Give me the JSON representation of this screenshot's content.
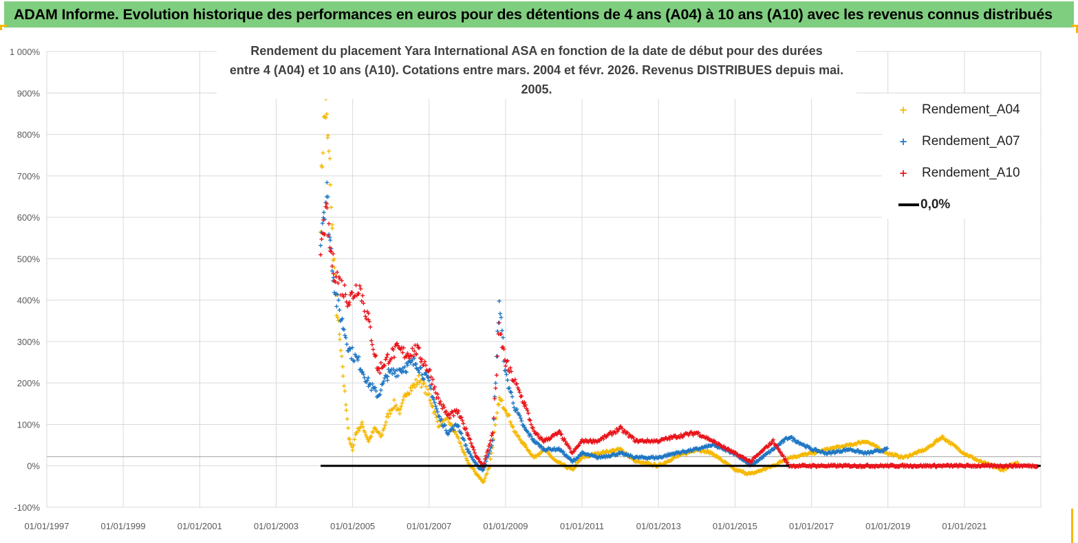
{
  "banner": {
    "title": "ADAM Informe. Evolution historique des performances en euros pour des détentions de 4 ans (A04) à 10 ans (A10) avec les revenus connus distribués"
  },
  "colors": {
    "banner_bg": "#7fcd7f",
    "A04": "#f5b800",
    "A07": "#1f77c4",
    "A10": "#e8141a",
    "zero_line": "#000000",
    "grid": "#d9d9d9"
  },
  "chart_data": {
    "type": "scatter",
    "title_line1": "Rendement du placement Yara International ASA en fonction de la date de début pour des durées",
    "title_line2": "entre 4 (A04) et 10 ans (A10).  Cotations entre mars. 2004 et févr. 2026. Revenus DISTRIBUES depuis mai. 2005.",
    "y_tick_labels": [
      "1 000%",
      "900%",
      "800%",
      "700%",
      "600%",
      "500%",
      "400%",
      "300%",
      "200%",
      "100%",
      "0%",
      "-100%"
    ],
    "y_ticks": [
      1000,
      900,
      800,
      700,
      600,
      500,
      400,
      300,
      200,
      100,
      0,
      -100
    ],
    "ylim": [
      -100,
      1000
    ],
    "x_tick_labels": [
      "01/01/1997",
      "01/01/1999",
      "01/01/2001",
      "01/01/2003",
      "01/01/2005",
      "01/01/2007",
      "01/01/2009",
      "01/01/2011",
      "01/01/2013",
      "01/01/2015",
      "01/01/2017",
      "01/01/2019",
      "01/01/2021"
    ],
    "x_ticks": [
      "1997-01-01",
      "1999-01-01",
      "2001-01-01",
      "2003-01-01",
      "2005-01-01",
      "2007-01-01",
      "2009-01-01",
      "2011-01-01",
      "2013-01-01",
      "2015-01-01",
      "2017-01-01",
      "2019-01-01",
      "2021-01-01"
    ],
    "xlim": [
      "1997-01-01",
      "2023-01-01"
    ],
    "grid": true,
    "legend_position": "top-right",
    "series": [
      {
        "name": "Rendement_A04",
        "marker": "+",
        "points": [
          [
            "2004-03-01",
            600
          ],
          [
            "2004-03-15",
            740
          ],
          [
            "2004-04-01",
            820
          ],
          [
            "2004-04-20",
            860
          ],
          [
            "2004-05-10",
            780
          ],
          [
            "2004-06-01",
            700
          ],
          [
            "2004-06-20",
            560
          ],
          [
            "2004-07-10",
            480
          ],
          [
            "2004-08-01",
            380
          ],
          [
            "2004-09-01",
            300
          ],
          [
            "2004-10-01",
            220
          ],
          [
            "2004-11-01",
            140
          ],
          [
            "2004-12-01",
            60
          ],
          [
            "2005-01-01",
            40
          ],
          [
            "2005-02-01",
            80
          ],
          [
            "2005-04-01",
            100
          ],
          [
            "2005-06-01",
            60
          ],
          [
            "2005-08-01",
            90
          ],
          [
            "2005-10-01",
            70
          ],
          [
            "2005-12-01",
            120
          ],
          [
            "2006-02-01",
            150
          ],
          [
            "2006-04-01",
            130
          ],
          [
            "2006-06-01",
            180
          ],
          [
            "2006-08-01",
            190
          ],
          [
            "2006-10-01",
            210
          ],
          [
            "2007-01-01",
            170
          ],
          [
            "2007-04-01",
            100
          ],
          [
            "2007-07-01",
            110
          ],
          [
            "2007-10-01",
            70
          ],
          [
            "2008-01-01",
            10
          ],
          [
            "2008-04-01",
            -20
          ],
          [
            "2008-06-01",
            -40
          ],
          [
            "2008-08-01",
            0
          ],
          [
            "2008-11-01",
            160
          ],
          [
            "2009-01-01",
            140
          ],
          [
            "2009-04-01",
            80
          ],
          [
            "2009-07-01",
            50
          ],
          [
            "2009-10-01",
            20
          ],
          [
            "2010-01-01",
            40
          ],
          [
            "2010-05-01",
            10
          ],
          [
            "2010-10-01",
            -10
          ],
          [
            "2011-01-01",
            20
          ],
          [
            "2011-06-01",
            30
          ],
          [
            "2012-01-01",
            40
          ],
          [
            "2012-06-01",
            10
          ],
          [
            "2013-01-01",
            0
          ],
          [
            "2013-06-01",
            20
          ],
          [
            "2014-01-01",
            40
          ],
          [
            "2014-06-01",
            30
          ],
          [
            "2015-01-01",
            -10
          ],
          [
            "2015-06-01",
            -20
          ],
          [
            "2016-01-01",
            0
          ],
          [
            "2016-06-01",
            20
          ],
          [
            "2017-01-01",
            30
          ],
          [
            "2017-06-01",
            40
          ],
          [
            "2018-01-01",
            50
          ],
          [
            "2018-06-01",
            60
          ],
          [
            "2019-01-01",
            30
          ],
          [
            "2019-06-01",
            20
          ],
          [
            "2020-01-01",
            40
          ],
          [
            "2020-06-01",
            70
          ],
          [
            "2021-01-01",
            30
          ],
          [
            "2021-06-01",
            10
          ],
          [
            "2022-01-01",
            -10
          ],
          [
            "2022-06-01",
            10
          ]
        ]
      },
      {
        "name": "Rendement_A07",
        "marker": "+",
        "points": [
          [
            "2004-03-01",
            560
          ],
          [
            "2004-04-01",
            620
          ],
          [
            "2004-05-01",
            660
          ],
          [
            "2004-06-01",
            540
          ],
          [
            "2004-07-01",
            460
          ],
          [
            "2004-08-01",
            400
          ],
          [
            "2004-10-01",
            340
          ],
          [
            "2004-12-01",
            280
          ],
          [
            "2005-03-01",
            250
          ],
          [
            "2005-06-01",
            200
          ],
          [
            "2005-09-01",
            170
          ],
          [
            "2005-12-01",
            220
          ],
          [
            "2006-03-01",
            230
          ],
          [
            "2006-06-01",
            240
          ],
          [
            "2006-09-01",
            250
          ],
          [
            "2007-01-01",
            200
          ],
          [
            "2007-04-01",
            120
          ],
          [
            "2007-07-01",
            80
          ],
          [
            "2007-10-01",
            100
          ],
          [
            "2008-01-01",
            40
          ],
          [
            "2008-04-01",
            0
          ],
          [
            "2008-06-01",
            -10
          ],
          [
            "2008-09-01",
            60
          ],
          [
            "2008-11-01",
            400
          ],
          [
            "2009-01-01",
            220
          ],
          [
            "2009-04-01",
            140
          ],
          [
            "2009-07-01",
            90
          ],
          [
            "2009-10-01",
            60
          ],
          [
            "2010-01-01",
            40
          ],
          [
            "2010-06-01",
            40
          ],
          [
            "2010-10-01",
            10
          ],
          [
            "2011-01-01",
            30
          ],
          [
            "2011-06-01",
            20
          ],
          [
            "2012-01-01",
            30
          ],
          [
            "2012-06-01",
            20
          ],
          [
            "2013-01-01",
            20
          ],
          [
            "2013-06-01",
            30
          ],
          [
            "2014-01-01",
            40
          ],
          [
            "2014-06-01",
            50
          ],
          [
            "2015-01-01",
            30
          ],
          [
            "2015-06-01",
            0
          ],
          [
            "2016-01-01",
            40
          ],
          [
            "2016-06-01",
            70
          ],
          [
            "2017-01-01",
            40
          ],
          [
            "2017-06-01",
            30
          ],
          [
            "2018-01-01",
            40
          ],
          [
            "2018-06-01",
            30
          ],
          [
            "2019-01-01",
            40
          ]
        ]
      },
      {
        "name": "Rendement_A10",
        "marker": "+",
        "points": [
          [
            "2004-03-01",
            520
          ],
          [
            "2004-04-01",
            580
          ],
          [
            "2004-05-01",
            600
          ],
          [
            "2004-06-01",
            520
          ],
          [
            "2004-07-01",
            480
          ],
          [
            "2004-09-01",
            440
          ],
          [
            "2004-12-01",
            400
          ],
          [
            "2005-03-01",
            440
          ],
          [
            "2005-06-01",
            350
          ],
          [
            "2005-09-01",
            230
          ],
          [
            "2005-12-01",
            260
          ],
          [
            "2006-03-01",
            280
          ],
          [
            "2006-06-01",
            270
          ],
          [
            "2006-09-01",
            280
          ],
          [
            "2007-01-01",
            230
          ],
          [
            "2007-04-01",
            160
          ],
          [
            "2007-07-01",
            120
          ],
          [
            "2007-10-01",
            130
          ],
          [
            "2008-01-01",
            80
          ],
          [
            "2008-04-01",
            20
          ],
          [
            "2008-06-01",
            0
          ],
          [
            "2008-09-01",
            80
          ],
          [
            "2008-11-01",
            330
          ],
          [
            "2009-01-01",
            250
          ],
          [
            "2009-04-01",
            200
          ],
          [
            "2009-07-01",
            150
          ],
          [
            "2009-10-01",
            80
          ],
          [
            "2010-01-01",
            60
          ],
          [
            "2010-06-01",
            80
          ],
          [
            "2010-10-01",
            30
          ],
          [
            "2011-01-01",
            60
          ],
          [
            "2011-06-01",
            60
          ],
          [
            "2012-01-01",
            90
          ],
          [
            "2012-06-01",
            60
          ],
          [
            "2013-01-01",
            60
          ],
          [
            "2013-06-01",
            70
          ],
          [
            "2014-01-01",
            80
          ],
          [
            "2014-06-01",
            60
          ],
          [
            "2015-01-01",
            30
          ],
          [
            "2015-06-01",
            10
          ],
          [
            "2016-01-01",
            60
          ],
          [
            "2016-06-01",
            0
          ],
          [
            "2017-01-01",
            0
          ],
          [
            "2018-01-01",
            0
          ],
          [
            "2019-01-01",
            0
          ],
          [
            "2020-01-01",
            0
          ],
          [
            "2021-01-01",
            0
          ],
          [
            "2022-01-01",
            0
          ],
          [
            "2022-12-01",
            0
          ]
        ]
      }
    ],
    "zero_line": {
      "label": "0,0%",
      "from": "2004-03-01",
      "to": "2022-12-31",
      "y": 0
    }
  }
}
